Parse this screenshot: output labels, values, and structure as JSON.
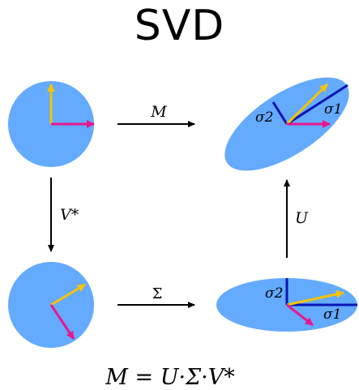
{
  "title": "SVD",
  "arrows": {
    "m_label": "M",
    "vstar_label": "V*",
    "sigma_label": "Σ",
    "u_label": "U"
  },
  "singular_values": {
    "sigma1": "σ1",
    "sigma2": "σ2"
  },
  "equation": "M = U·Σ·V*",
  "colors": {
    "shape_fill": "#64aaff",
    "vector_yellow": "#f5c400",
    "vector_magenta": "#e8168c",
    "axis_dark_blue": "#0a14b4",
    "arrow_black": "#000000"
  }
}
